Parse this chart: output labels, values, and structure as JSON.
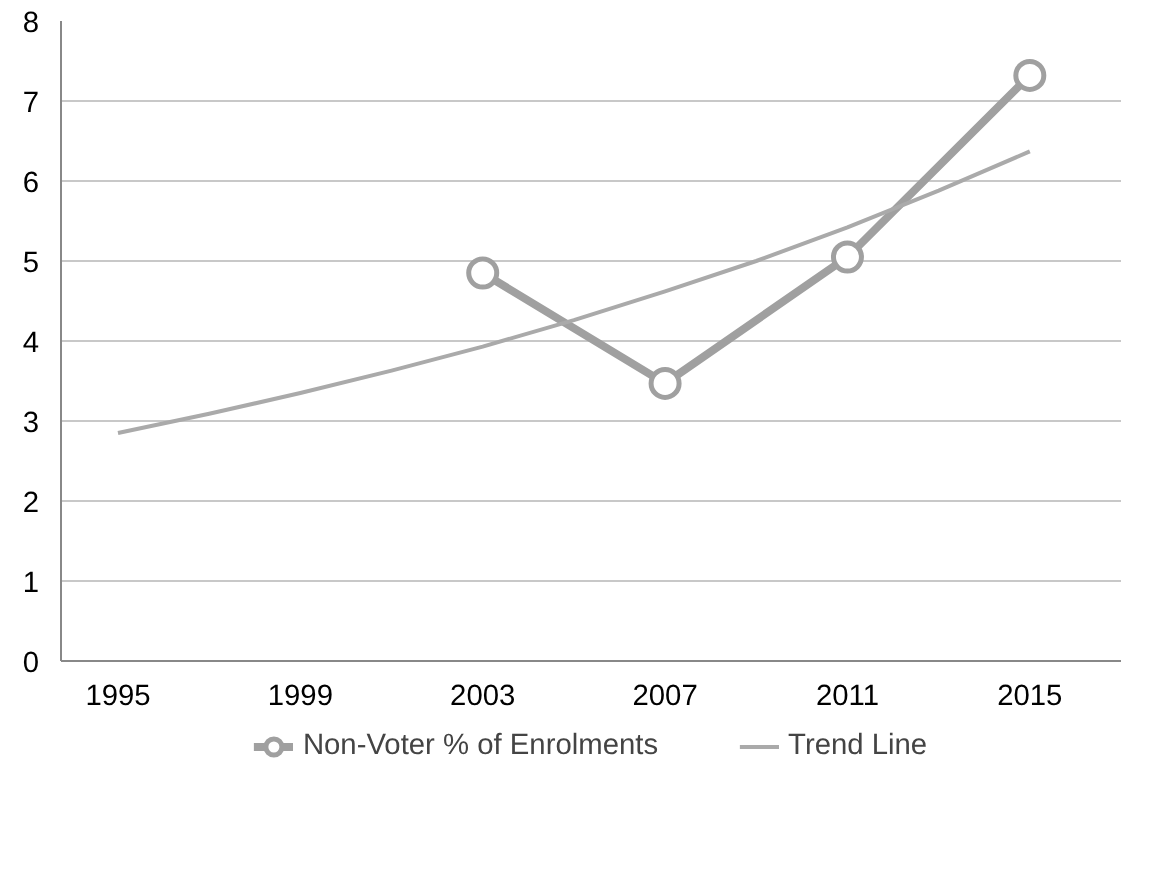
{
  "chart_data": {
    "type": "line",
    "xlim": [
      1993.75,
      2017
    ],
    "xticks": [
      1995,
      1999,
      2003,
      2007,
      2011,
      2015
    ],
    "ylim": [
      0,
      8
    ],
    "yticks": [
      0,
      1,
      2,
      3,
      4,
      5,
      6,
      7,
      8
    ],
    "grid": "y",
    "legend": "bottom",
    "series": [
      {
        "name": "Non-Voter % of Enrolments",
        "color": "#a0a0a0",
        "marker": "circle",
        "x": [
          2003,
          2007,
          2011,
          2015
        ],
        "values": [
          4.85,
          3.47,
          5.05,
          7.32
        ]
      },
      {
        "name": "Trend Line",
        "color": "#aaaaaa",
        "marker": "none",
        "x": [
          1995,
          1997,
          1999,
          2001,
          2003,
          2005,
          2007,
          2009,
          2011,
          2013,
          2015
        ],
        "values": [
          2.85,
          3.09,
          3.35,
          3.63,
          3.93,
          4.26,
          4.62,
          5.0,
          5.42,
          5.88,
          6.37
        ]
      }
    ]
  }
}
